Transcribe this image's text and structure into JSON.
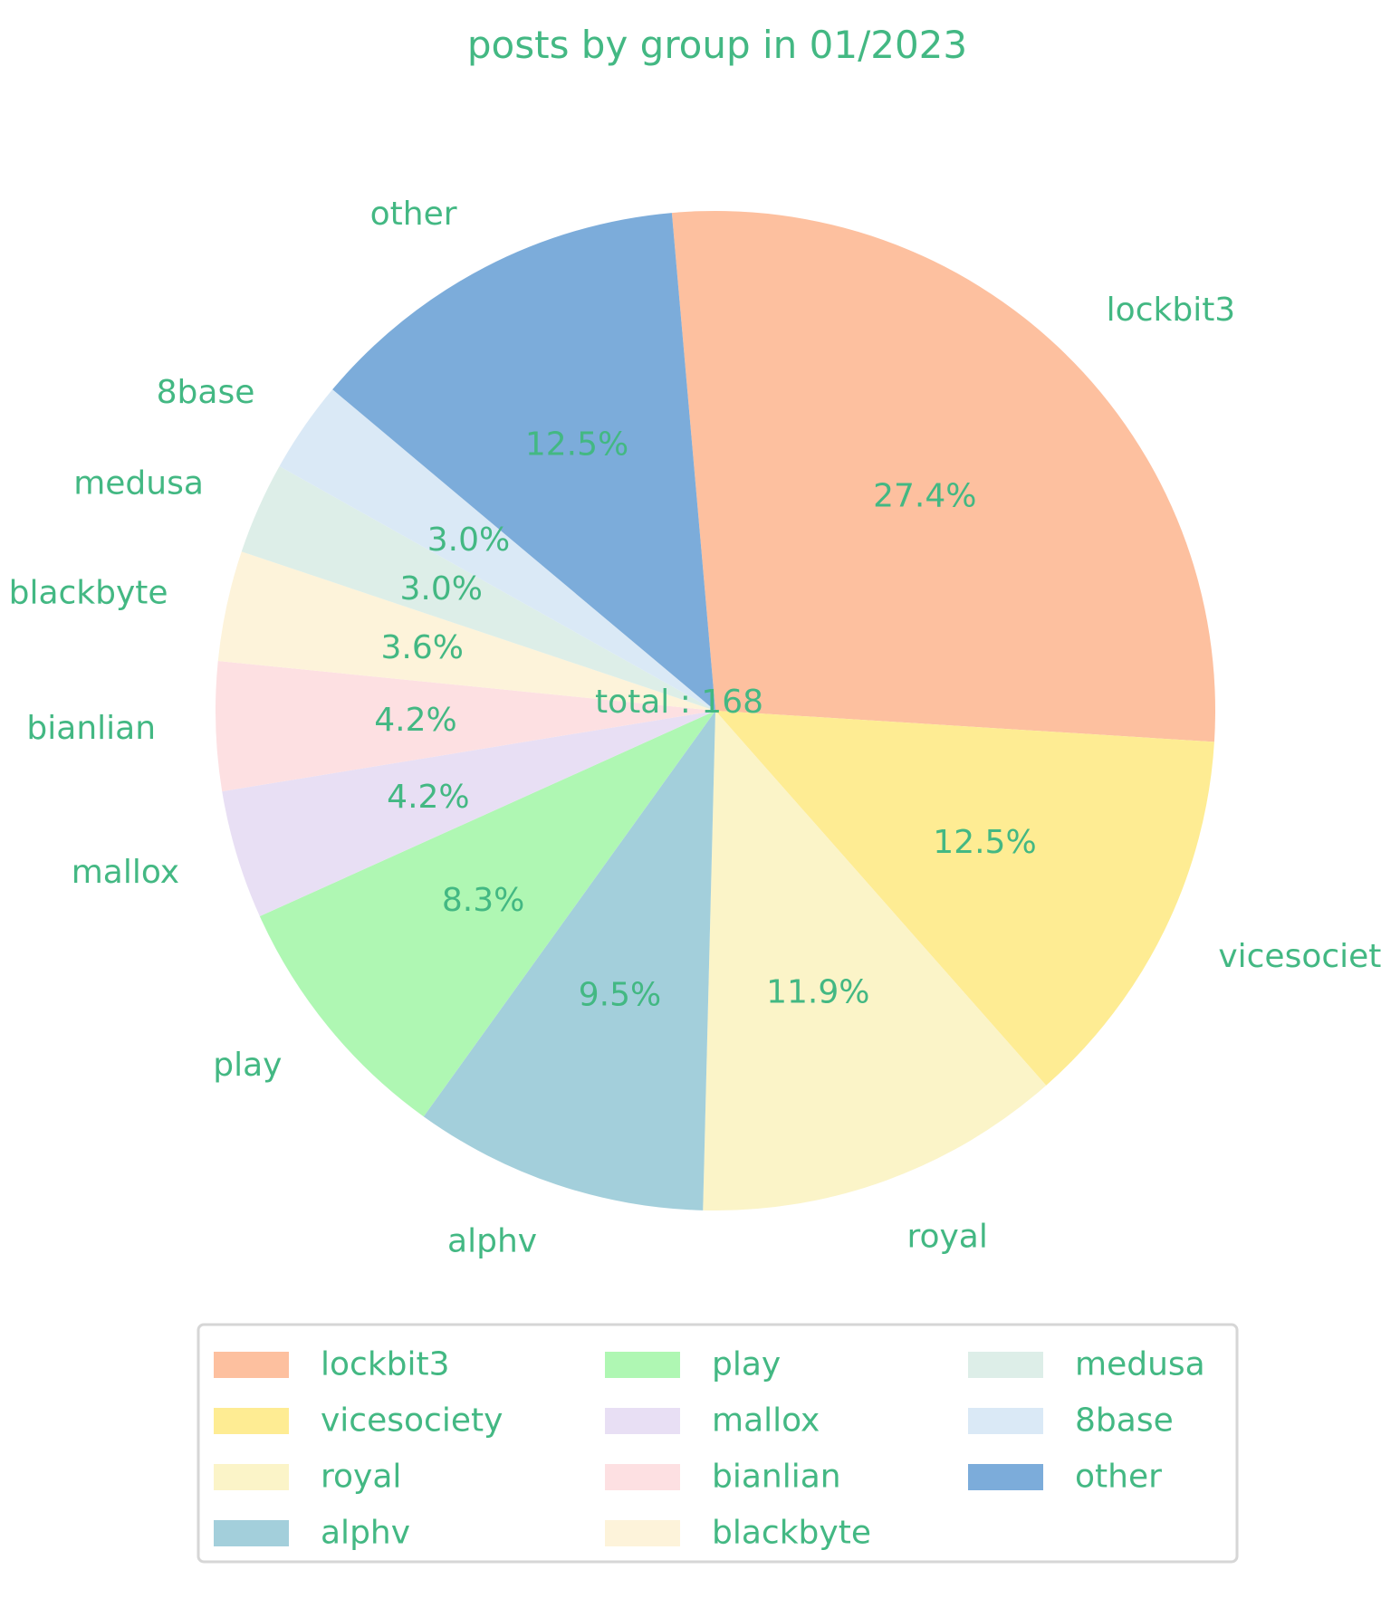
{
  "chart_data": {
    "type": "pie",
    "title": "posts by group in 01/2023",
    "center_label": "total : 168",
    "text_color": "#43b883",
    "slices": [
      {
        "label": "lockbit3",
        "value": 46,
        "percent_label": "27.4%",
        "color": "#fdc09f"
      },
      {
        "label": "vicesociety",
        "value": 21,
        "percent_label": "12.5%",
        "color": "#feec93"
      },
      {
        "label": "royal",
        "value": 20,
        "percent_label": "11.9%",
        "color": "#fbf4c8"
      },
      {
        "label": "alphv",
        "value": 16,
        "percent_label": "9.5%",
        "color": "#a3cfdb"
      },
      {
        "label": "play",
        "value": 14,
        "percent_label": "8.3%",
        "color": "#aff7b3"
      },
      {
        "label": "mallox",
        "value": 7,
        "percent_label": "4.2%",
        "color": "#e8dff4"
      },
      {
        "label": "bianlian",
        "value": 7,
        "percent_label": "4.2%",
        "color": "#fde0e2"
      },
      {
        "label": "blackbyte",
        "value": 6,
        "percent_label": "3.6%",
        "color": "#fdf3da"
      },
      {
        "label": "medusa",
        "value": 5,
        "percent_label": "3.0%",
        "color": "#ddeee8"
      },
      {
        "label": "8base",
        "value": 5,
        "percent_label": "3.0%",
        "color": "#dae9f6"
      },
      {
        "label": "other",
        "value": 21,
        "percent_label": "12.5%",
        "color": "#7cacda"
      }
    ],
    "start_angle_deg": 95,
    "direction": "clockwise",
    "legend": {
      "placement": "bottom-center",
      "columns": 3
    }
  }
}
